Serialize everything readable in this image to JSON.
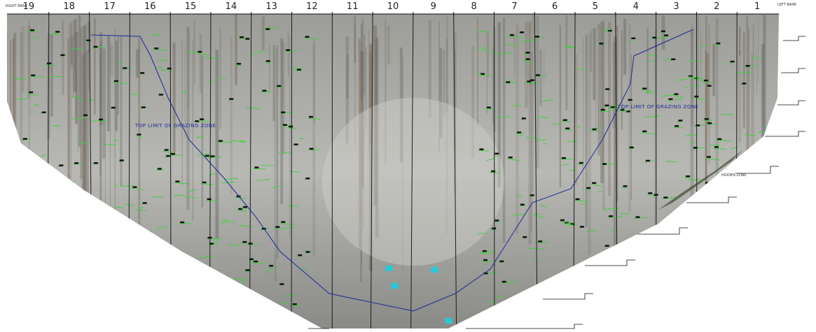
{
  "blocks": [
    "19",
    "18",
    "17",
    "16",
    "15",
    "14",
    "13",
    "12",
    "11",
    "10",
    "9",
    "8",
    "7",
    "6",
    "5",
    "4",
    "3",
    "2",
    "1"
  ],
  "labels": {
    "right_bank": "RIGHT BANK",
    "left_bank": "LEFT BANK",
    "grazing_left": "TOP LIMIT OF GRAZING ZONE",
    "grazing_right": "TOP LIMIT OF GRAZING ZONE",
    "hidden_zone": "HIDDEN ZONE"
  }
}
